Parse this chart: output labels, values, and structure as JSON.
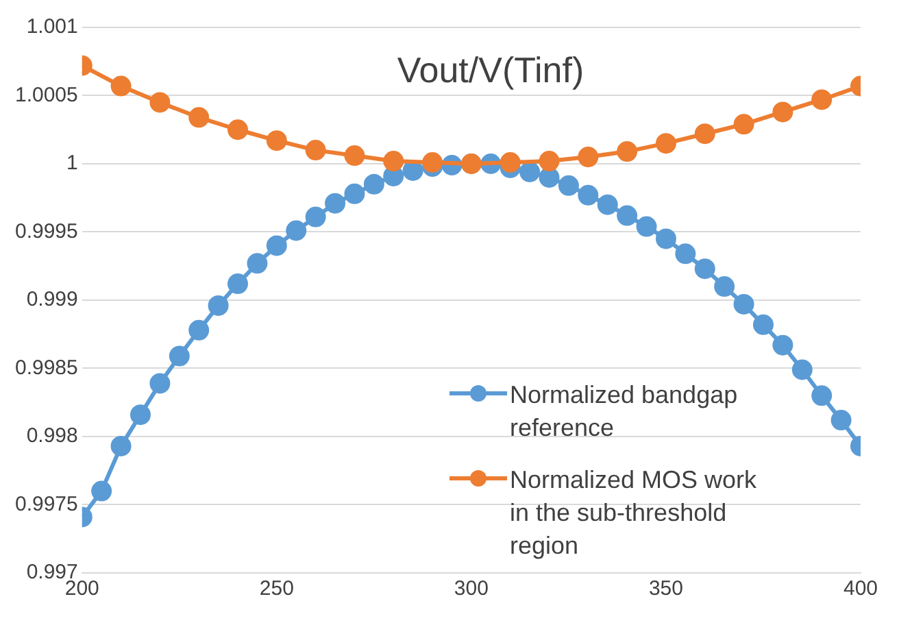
{
  "chart_data": {
    "type": "line",
    "title": "Vout/V(Tinf)",
    "series": [
      {
        "name": "Normalized bandgap reference",
        "color": "#5b9bd5",
        "x": [
          200,
          205,
          210,
          215,
          220,
          225,
          230,
          235,
          240,
          245,
          250,
          255,
          260,
          265,
          270,
          275,
          280,
          285,
          290,
          295,
          300,
          305,
          310,
          315,
          320,
          325,
          330,
          335,
          340,
          345,
          350,
          355,
          360,
          365,
          370,
          375,
          380,
          385,
          390,
          395,
          400
        ],
        "values": [
          0.99741,
          0.9976,
          0.99793,
          0.99816,
          0.99839,
          0.99859,
          0.99878,
          0.99896,
          0.99912,
          0.99927,
          0.9994,
          0.99951,
          0.99961,
          0.99971,
          0.99978,
          0.99985,
          0.99991,
          0.99995,
          0.99998,
          0.99999,
          1,
          1,
          0.99997,
          0.99994,
          0.9999,
          0.99984,
          0.99977,
          0.9997,
          0.99962,
          0.99954,
          0.99945,
          0.99934,
          0.99923,
          0.9991,
          0.99897,
          0.99882,
          0.99867,
          0.99849,
          0.9983,
          0.99812,
          0.99793
        ]
      },
      {
        "name": "Normalized MOS work in the sub-threshold region",
        "color": "#ed7d31",
        "x": [
          200,
          210,
          220,
          230,
          240,
          250,
          260,
          270,
          280,
          290,
          300,
          310,
          320,
          330,
          340,
          350,
          360,
          370,
          380,
          390,
          400
        ],
        "values": [
          1.00072,
          1.00057,
          1.00045,
          1.00034,
          1.00025,
          1.00017,
          1.0001,
          1.00006,
          1.00002,
          1.00001,
          1,
          1.00001,
          1.00002,
          1.00005,
          1.00009,
          1.00015,
          1.00022,
          1.00029,
          1.00038,
          1.00047,
          1.00057
        ]
      }
    ],
    "xlim": [
      200,
      400
    ],
    "xticks": [
      200,
      250,
      300,
      350,
      400
    ],
    "ylim": [
      0.997,
      1.001
    ],
    "yticks": [
      0.997,
      0.9975,
      0.998,
      0.9985,
      0.999,
      0.9995,
      1,
      1.0005,
      1.001
    ],
    "grid": "y",
    "legend": "bottom right",
    "marker": "circle",
    "line_style": "solid"
  }
}
